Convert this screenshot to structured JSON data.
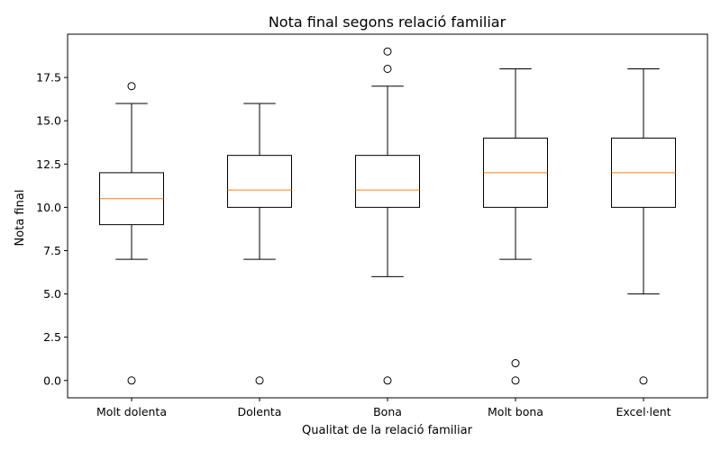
{
  "chart_data": {
    "type": "box",
    "title": "Nota final segons relació familiar",
    "xlabel": "Qualitat de la relació familiar",
    "ylabel": "Nota final",
    "ylim": [
      -1.0,
      20.0
    ],
    "yticks": [
      0.0,
      2.5,
      5.0,
      7.5,
      10.0,
      12.5,
      15.0,
      17.5
    ],
    "ytick_labels": [
      "0.0",
      "2.5",
      "5.0",
      "7.5",
      "10.0",
      "12.5",
      "15.0",
      "17.5"
    ],
    "grid": false,
    "box_color": "#000000",
    "median_color": "#ff7f0e",
    "categories": [
      "Molt dolenta",
      "Dolenta",
      "Bona",
      "Molt bona",
      "Excel·lent"
    ],
    "boxes": [
      {
        "whisker_low": 7,
        "q1": 9,
        "median": 10.5,
        "q3": 12,
        "whisker_high": 16,
        "outliers": [
          17,
          0
        ]
      },
      {
        "whisker_low": 7,
        "q1": 10,
        "median": 11,
        "q3": 13,
        "whisker_high": 16,
        "outliers": [
          0
        ]
      },
      {
        "whisker_low": 6,
        "q1": 10,
        "median": 11,
        "q3": 13,
        "whisker_high": 17,
        "outliers": [
          18,
          19,
          0
        ]
      },
      {
        "whisker_low": 7,
        "q1": 10,
        "median": 12,
        "q3": 14,
        "whisker_high": 18,
        "outliers": [
          1,
          0
        ]
      },
      {
        "whisker_low": 5,
        "q1": 10,
        "median": 12,
        "q3": 14,
        "whisker_high": 18,
        "outliers": [
          0
        ]
      }
    ]
  }
}
